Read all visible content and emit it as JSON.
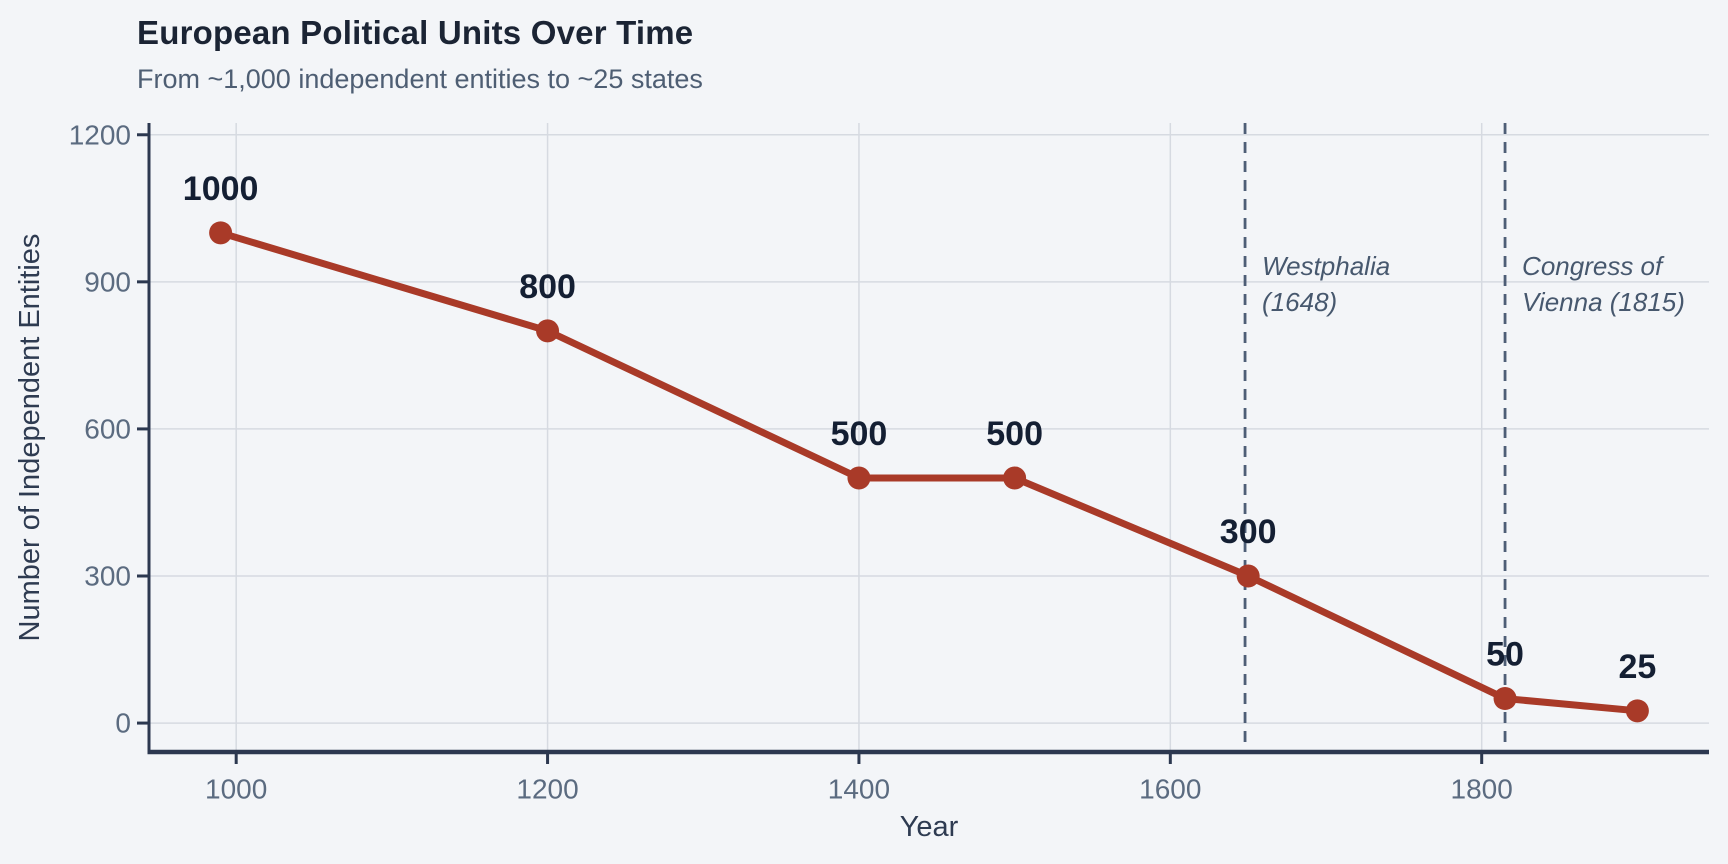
{
  "header": {
    "title": "European Political Units Over Time",
    "subtitle": "From ~1,000 independent entities to ~25 states"
  },
  "chart_data": {
    "type": "line",
    "title": "European Political Units Over Time",
    "subtitle": "From ~1,000 independent entities to ~25 states",
    "xlabel": "Year",
    "ylabel": "Number of Independent Entities",
    "x": [
      990,
      1200,
      1400,
      1500,
      1650,
      1815,
      1900
    ],
    "values": [
      1000,
      800,
      500,
      500,
      300,
      50,
      25
    ],
    "point_labels": [
      "1000",
      "800",
      "500",
      "500",
      "300",
      "50",
      "25"
    ],
    "xticks": [
      1000,
      1200,
      1400,
      1600,
      1800
    ],
    "xtick_labels": [
      "1000",
      "1200",
      "1400",
      "1600",
      "1800"
    ],
    "yticks": [
      0,
      300,
      600,
      900,
      1200
    ],
    "ytick_labels": [
      "0",
      "300",
      "600",
      "900",
      "1200"
    ],
    "xlim": [
      944,
      1946
    ],
    "ylim": [
      -59,
      1224
    ],
    "grid": true,
    "legend_position": "none",
    "annotations": [
      {
        "x": 1648,
        "lines": [
          "Westphalia",
          "(1648)"
        ]
      },
      {
        "x": 1815,
        "lines": [
          "Congress of",
          "Vienna (1815)"
        ]
      }
    ]
  },
  "colors": {
    "background": "#f3f5f8",
    "line": "#a93a28",
    "marker": "#a93a28",
    "grid": "#d6dae1",
    "spine": "#2c3850",
    "tick_label": "#5b6b80",
    "axis_label": "#2e3b51",
    "data_label": "#141f33",
    "title": "#1b2434",
    "subtitle": "#4e5e73",
    "annotation_text": "#47586e",
    "annotation_line": "#4e5e76"
  }
}
